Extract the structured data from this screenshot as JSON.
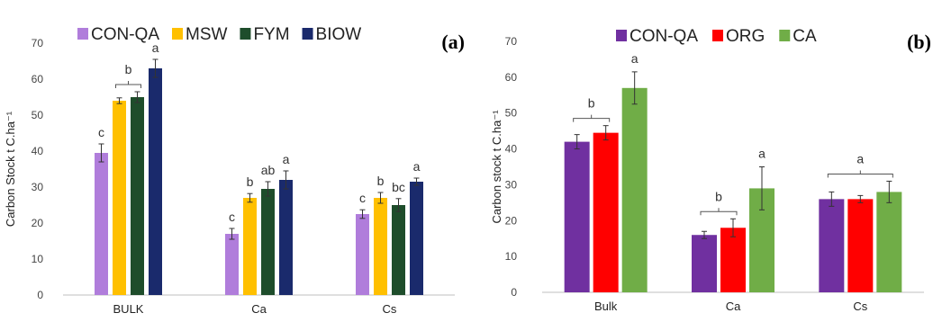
{
  "chart_data": [
    {
      "type": "bar",
      "panel_label": "(a)",
      "categories": [
        "BULK",
        "Ca",
        "Cs"
      ],
      "ylabel": "Carbon Stock t C.ha⁻¹",
      "ylim": [
        0,
        70
      ],
      "yticks": [
        0,
        10,
        20,
        30,
        40,
        50,
        60,
        70
      ],
      "grid": false,
      "legend": "top",
      "series": [
        {
          "name": "CON-QA",
          "color": "#b07ddb",
          "values": [
            39.5,
            17,
            22.5
          ],
          "errors": [
            2.5,
            1.5,
            1.2
          ],
          "labels": [
            "c",
            "c",
            "c"
          ]
        },
        {
          "name": "MSW",
          "color": "#ffc000",
          "values": [
            54,
            27,
            27
          ],
          "errors": [
            0.8,
            1.2,
            1.5
          ],
          "labels": [
            "",
            "b",
            "b"
          ]
        },
        {
          "name": "FYM",
          "color": "#1e4d2b",
          "values": [
            55,
            29.5,
            25
          ],
          "errors": [
            1.5,
            2,
            1.8
          ],
          "labels": [
            "",
            "ab",
            "bc"
          ]
        },
        {
          "name": "BIOW",
          "color": "#1a2a6c",
          "values": [
            63,
            32,
            31.5
          ],
          "errors": [
            2.5,
            2.5,
            1
          ],
          "labels": [
            "a",
            "a",
            "a"
          ]
        }
      ],
      "group_labels": [
        {
          "category": 0,
          "from_series": 1,
          "to_series": 2,
          "text": "b"
        }
      ]
    },
    {
      "type": "bar",
      "panel_label": "(b)",
      "categories": [
        "Bulk",
        "Ca",
        "Cs"
      ],
      "ylabel": "Carbon stock t C.ha⁻¹",
      "ylim": [
        0,
        70
      ],
      "yticks": [
        0,
        10,
        20,
        30,
        40,
        50,
        60,
        70
      ],
      "grid": false,
      "legend": "top",
      "series": [
        {
          "name": "CON-QA",
          "color": "#7030a0",
          "values": [
            42,
            16,
            26
          ],
          "errors": [
            2,
            1,
            2
          ]
        },
        {
          "name": "ORG",
          "color": "#ff0000",
          "values": [
            44.5,
            18,
            26
          ],
          "errors": [
            2,
            2.5,
            1
          ]
        },
        {
          "name": "CA",
          "color": "#70ad47",
          "values": [
            57,
            29,
            28
          ],
          "errors": [
            4.5,
            6,
            3
          ]
        }
      ],
      "group_labels": [
        {
          "category": 0,
          "from_series": 0,
          "to_series": 1,
          "text": "b"
        },
        {
          "category": 0,
          "from_series": 2,
          "to_series": 2,
          "text": "a"
        },
        {
          "category": 1,
          "from_series": 0,
          "to_series": 1,
          "text": "b"
        },
        {
          "category": 1,
          "from_series": 2,
          "to_series": 2,
          "text": "a"
        },
        {
          "category": 2,
          "from_series": 0,
          "to_series": 2,
          "text": "a"
        }
      ]
    }
  ]
}
